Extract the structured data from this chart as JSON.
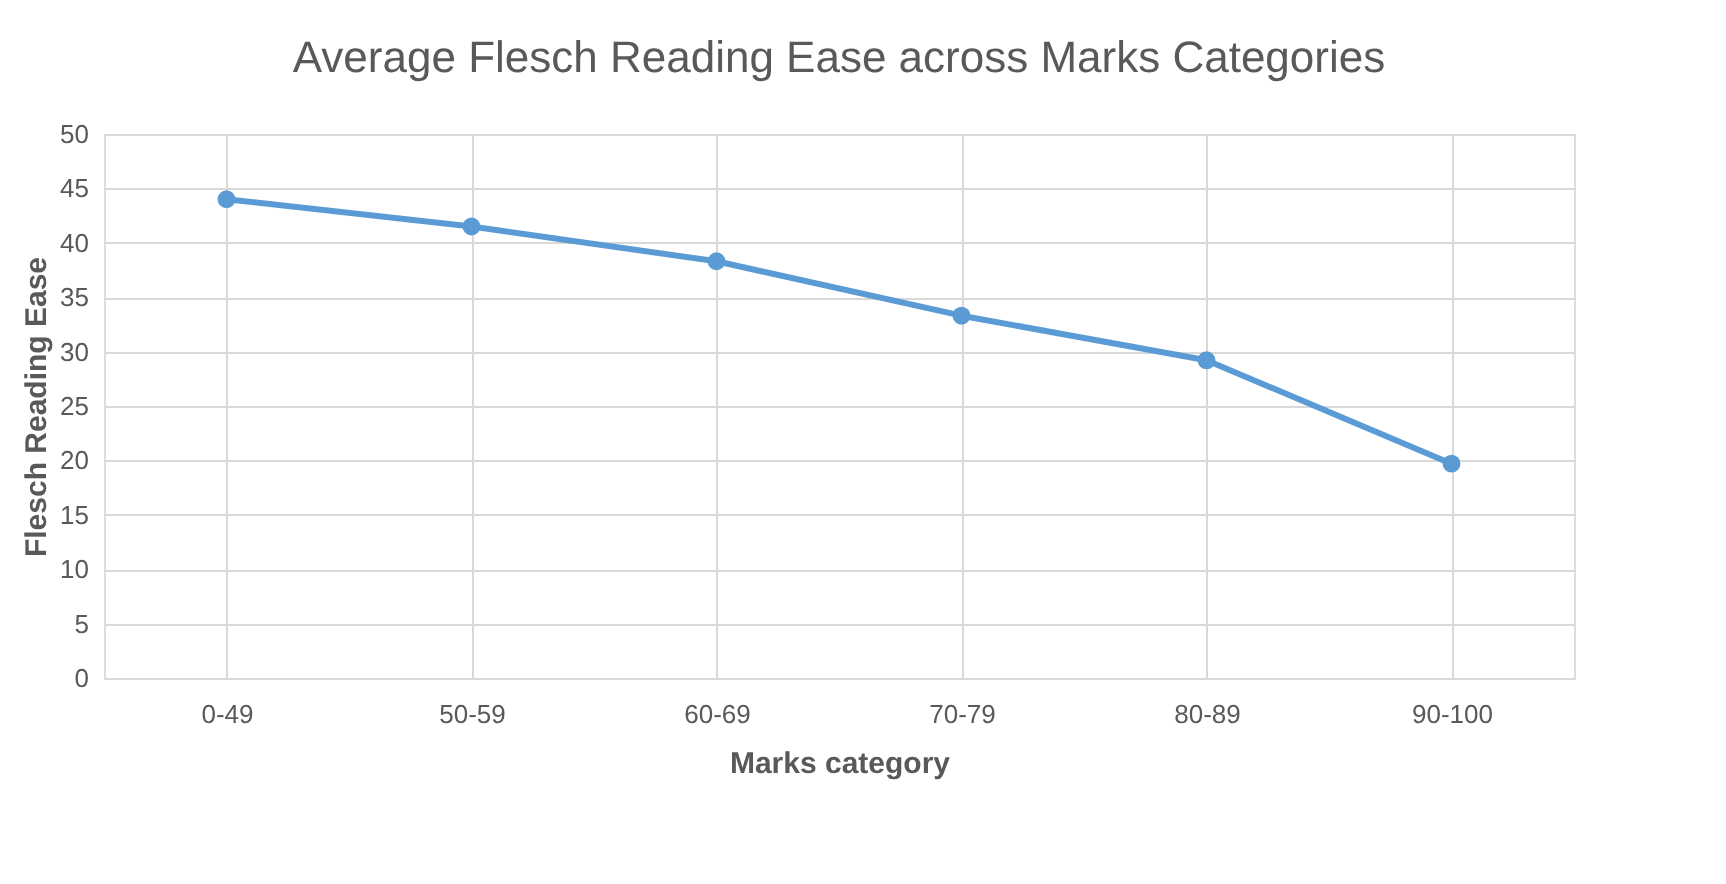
{
  "chart_data": {
    "type": "line",
    "title": "Average Flesch Reading Ease across Marks Categories",
    "xlabel": "Marks category",
    "ylabel": "Flesch Reading Ease",
    "categories": [
      "0-49",
      "50-59",
      "60-69",
      "70-79",
      "80-89",
      "90-100"
    ],
    "series": [
      {
        "color": "#5b9bd5",
        "values": [
          44.0,
          41.5,
          38.3,
          33.3,
          29.2,
          19.7
        ]
      }
    ],
    "ylim": [
      0,
      50
    ],
    "yticks": [
      0,
      5,
      10,
      15,
      20,
      25,
      30,
      35,
      40,
      45,
      50
    ],
    "grid": true,
    "legend": false,
    "marker": "circle",
    "line_style": "solid"
  }
}
